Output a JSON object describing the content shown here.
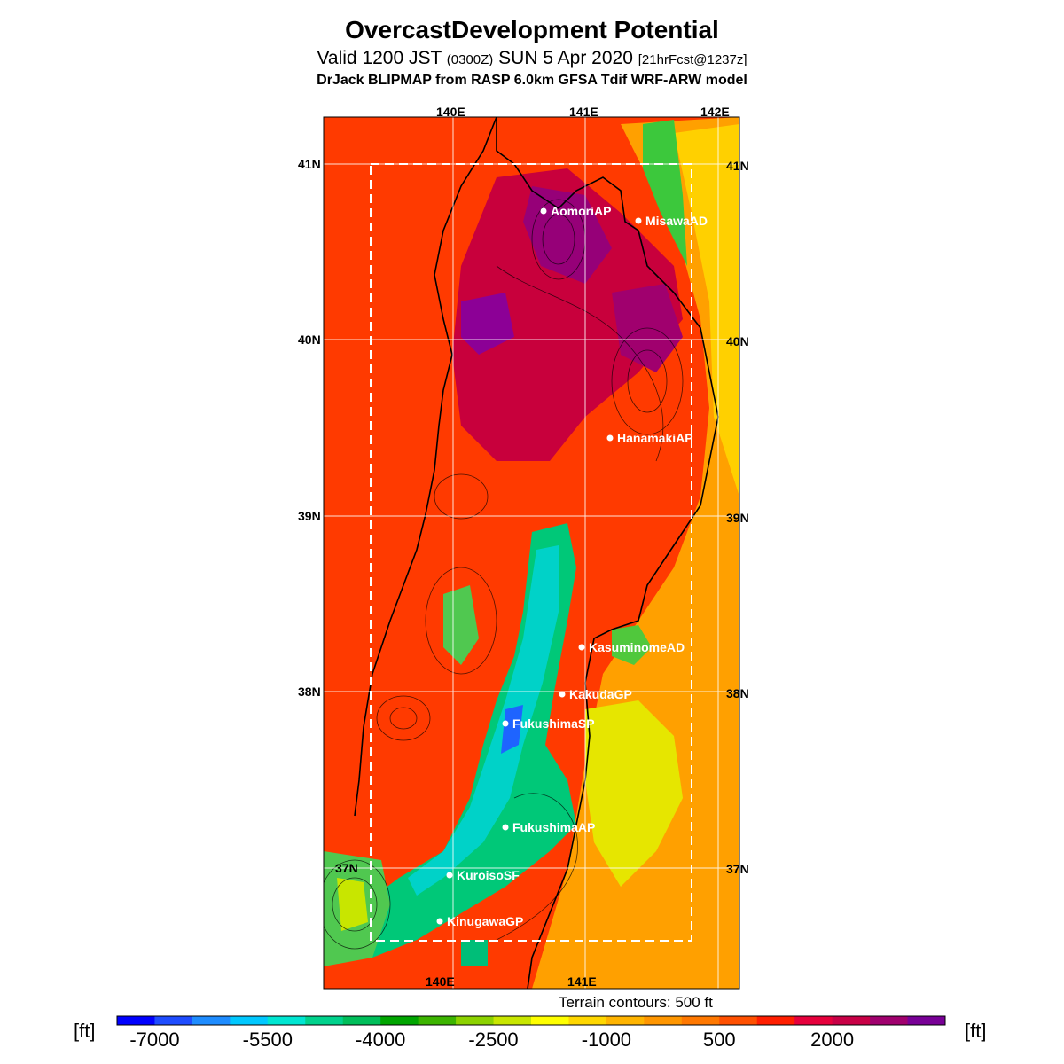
{
  "header": {
    "title": "OvercastDevelopment Potential",
    "valid_prefix": "Valid 1200 JST",
    "utc": "(0300Z)",
    "date": "SUN 5 Apr 2020",
    "forecast": "[21hrFcst@1237z]",
    "model": "DrJack BLIPMAP from RASP 6.0km GFSA Tdif WRF-ARW model"
  },
  "map": {
    "lon_labels_top": [
      "140E",
      "141E",
      "142E"
    ],
    "lon_labels_bottom": [
      "140E",
      "141E"
    ],
    "lat_labels": [
      "41N",
      "40N",
      "39N",
      "38N",
      "37N"
    ],
    "sites": [
      {
        "name": "AomoriAP"
      },
      {
        "name": "MisawaAD"
      },
      {
        "name": "HanamakiAP"
      },
      {
        "name": "KasuminomeAD"
      },
      {
        "name": "KakudaGP"
      },
      {
        "name": "FukushimaSP"
      },
      {
        "name": "FukushimaAP"
      },
      {
        "name": "KuroisoSF"
      },
      {
        "name": "KinugawaGP"
      }
    ]
  },
  "legend": {
    "terrain_note": "Terrain contours: 500 ft",
    "unit": "[ft]",
    "tick_labels": [
      "-7000",
      "-5500",
      "-4000",
      "-2500",
      "-1000",
      "500",
      "2000"
    ],
    "colors": [
      "#0000ff",
      "#1e4cff",
      "#1e8cff",
      "#00c8ff",
      "#00e6d2",
      "#00d28c",
      "#00be5a",
      "#00a500",
      "#3cb400",
      "#8cd200",
      "#c8e600",
      "#ffff00",
      "#ffd700",
      "#ffb400",
      "#ff9600",
      "#ff7800",
      "#ff5000",
      "#ff1e00",
      "#e6003c",
      "#c80046",
      "#a0006e",
      "#780096"
    ]
  }
}
